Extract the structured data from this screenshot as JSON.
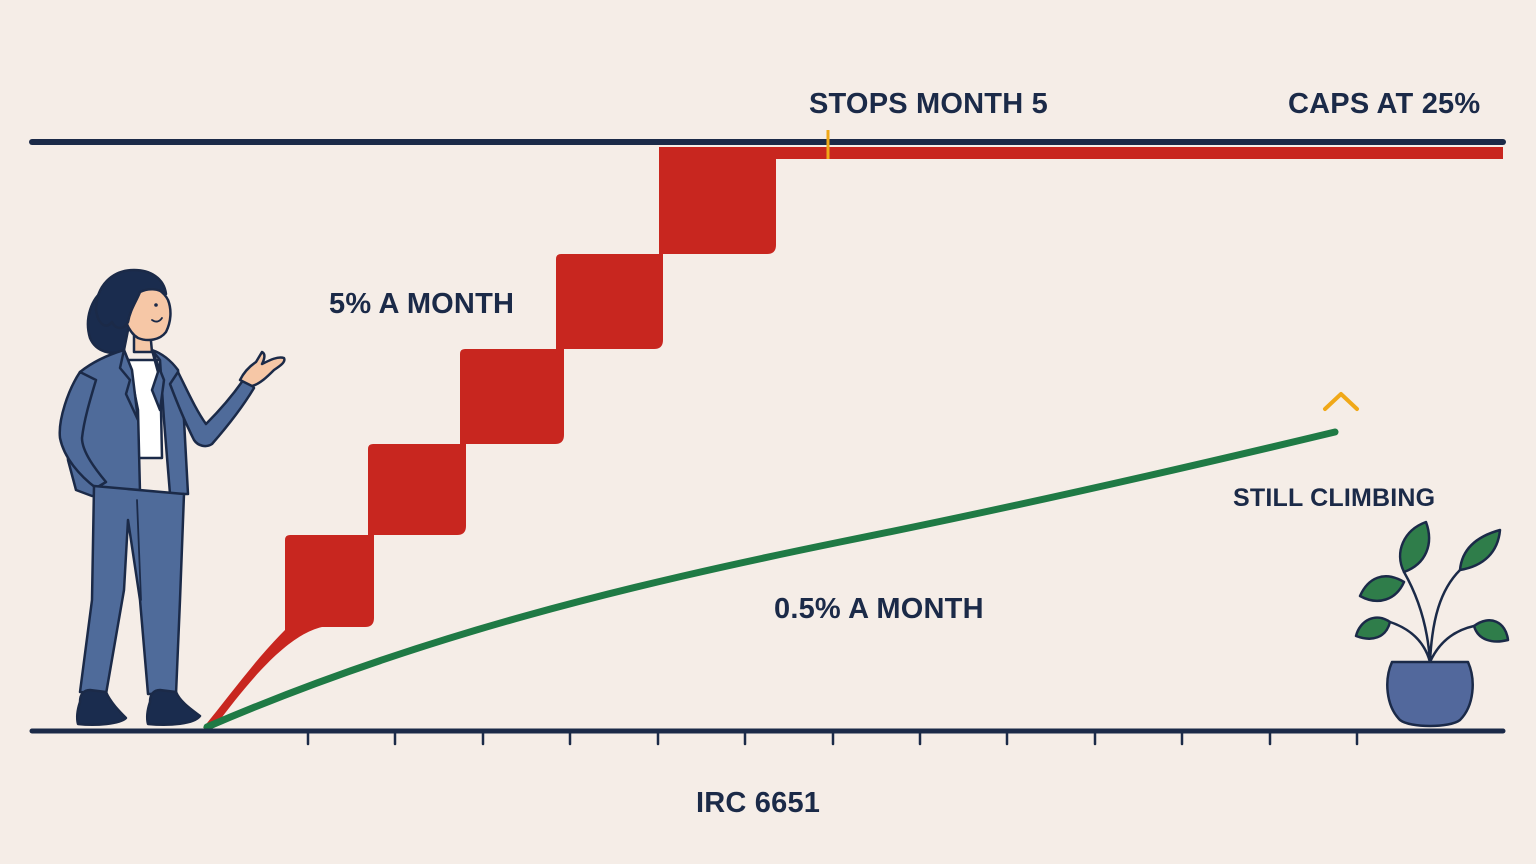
{
  "labels": {
    "stops": "STOPS MONTH 5",
    "caps": "CAPS AT 25%",
    "failure_to_file": "5% A MONTH",
    "failure_to_pay": "0.5% A MONTH",
    "still_climbing": "STILL CLIMBING",
    "statute": "IRC 6651"
  },
  "colors": {
    "background": "#f5ede7",
    "axis": "#1b2a48",
    "failure_to_file": "#c8261f",
    "failure_to_pay": "#1f7a45",
    "marker": "#f0a818",
    "suit": "#4f6b9a",
    "plant_leaf": "#2f7d4a",
    "pot": "#52689c"
  },
  "icons": {
    "presenter": "woman-presenting-figure",
    "plant": "potted-plant-icon",
    "chevron": "chevron-up-icon"
  },
  "diagram": {
    "ceiling_percent": 25,
    "failure_to_file_rate_percent_per_month": 5,
    "failure_to_file_stop_month": 5,
    "failure_to_pay_rate_percent_per_month": 0.5,
    "x_axis_tick_count": 13
  }
}
